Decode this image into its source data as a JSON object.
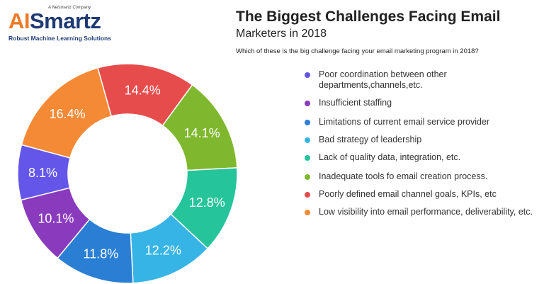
{
  "logo": {
    "company_tag": "A Netsmartz Company",
    "brand_ai": "AI",
    "brand_rest": "Smartz",
    "tagline": "Robust Machine Learning Solutions"
  },
  "chart_data": {
    "type": "pie",
    "donut": true,
    "title_line1": "The Biggest Challenges Facing Email",
    "title_line2": "Marketers in 2018",
    "subtitle": "Which of these is the big challenge facing your email marketing program in 2018?",
    "legend_position": "right",
    "categories": [
      "Poor coordination between other departments,channels,etc.",
      "Insufficient staffing",
      "Limitations of current email service provider",
      "Bad strategy of leadership",
      "Lack of quality data, integration, etc.",
      "Inadequate tools fo email creation process.",
      "Poorly defined email channel goals, KPIs, etc",
      "Low visibility into email performance, deliverability, etc."
    ],
    "legend_colors": [
      "#6456e8",
      "#8a3bbd",
      "#2a7fd4",
      "#36b4e6",
      "#25c49a",
      "#7fb82e",
      "#e74c4c",
      "#f58a36"
    ],
    "slices": [
      {
        "label": "8.1%",
        "value": 8.1,
        "color": "#6456e8"
      },
      {
        "label": "16.4%",
        "value": 16.4,
        "color": "#f58a36"
      },
      {
        "label": "14.4%",
        "value": 14.4,
        "color": "#e74c4c"
      },
      {
        "label": "14.1%",
        "value": 14.1,
        "color": "#7fb82e"
      },
      {
        "label": "12.8%",
        "value": 12.8,
        "color": "#25c49a"
      },
      {
        "label": "12.2%",
        "value": 12.2,
        "color": "#36b4e6"
      },
      {
        "label": "11.8%",
        "value": 11.8,
        "color": "#2a7fd4"
      },
      {
        "label": "10.1%",
        "value": 10.1,
        "color": "#8a3bbd"
      }
    ]
  }
}
